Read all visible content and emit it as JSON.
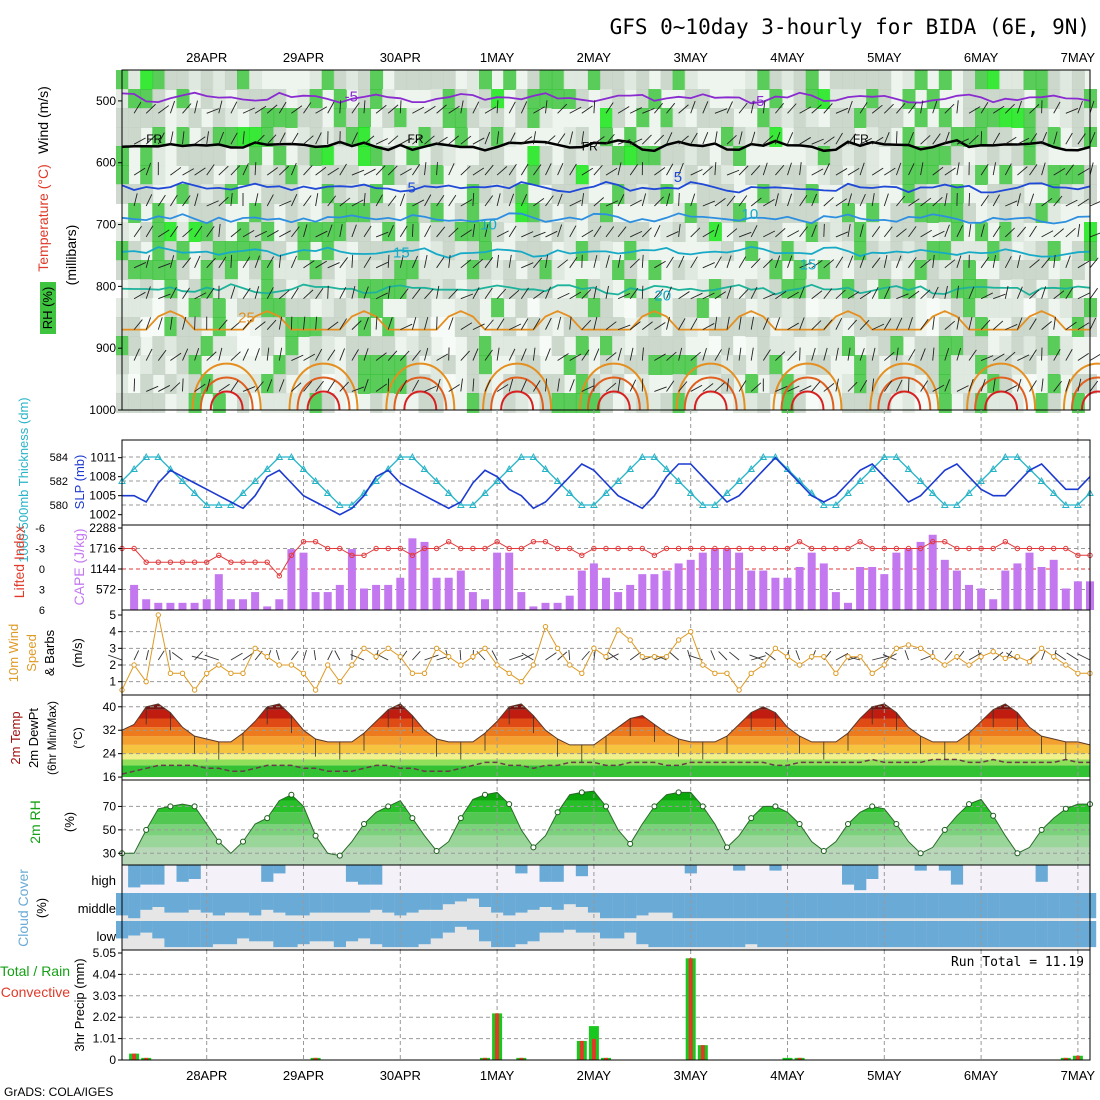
{
  "title": "GFS 0~10day 3-hourly for BIDA (6E, 9N)",
  "credit": "GrADS: COLA/IGES",
  "dates": [
    "28APR",
    "29APR",
    "30APR",
    "1MAY",
    "2MAY",
    "3MAY",
    "4MAY",
    "5MAY",
    "6MAY",
    "7MAY"
  ],
  "colors": {
    "rh_green": "#3fc43f",
    "rh_bright": "#17e617",
    "rh_gray": "#c7d2c7",
    "temp_blue": "#1f49d6",
    "temp_cyan": "#16aac6",
    "temp_orange": "#e48f20",
    "cape_purple": "#c478f0",
    "li_red": "#e2383a",
    "slp_blue": "#1c3ad0",
    "thick_cyan": "#28b4c8",
    "wind_orange": "#de9a24",
    "cloud_blue": "#6aaad6",
    "precip_green": "#19c81e",
    "precip_red": "#e03a28"
  },
  "panels": {
    "upper": {
      "ylabel": "(millibars)",
      "legend_wind": "Wind (m/s)",
      "legend_temp": "Temperature (°C)",
      "legend_rh": "RH (%)",
      "yticks": [
        "500",
        "600",
        "700",
        "800",
        "900",
        "1000"
      ],
      "contour_labels": [
        {
          "text": "-5",
          "mb": 493,
          "day": 2.3
        },
        {
          "text": "-5",
          "mb": 500,
          "day": 6.5
        },
        {
          "text": "FR",
          "mb": 560,
          "day": 0.25
        },
        {
          "text": "FR",
          "mb": 560,
          "day": 2.95
        },
        {
          "text": "FR",
          "mb": 572,
          "day": 4.75
        },
        {
          "text": "FR",
          "mb": 560,
          "day": 7.55
        },
        {
          "text": "5",
          "mb": 640,
          "day": 2.95
        },
        {
          "text": "5",
          "mb": 623,
          "day": 5.7
        },
        {
          "text": "10",
          "mb": 700,
          "day": 3.7
        },
        {
          "text": "10",
          "mb": 683,
          "day": 6.4
        },
        {
          "text": "15",
          "mb": 745,
          "day": 2.8
        },
        {
          "text": "15",
          "mb": 765,
          "day": 7.0
        },
        {
          "text": "20",
          "mb": 815,
          "day": 5.5
        },
        {
          "text": "25",
          "mb": 850,
          "day": 1.2
        }
      ]
    },
    "slp": {
      "ylabel_left": "1000-500mb Thickness (dm)",
      "ylabel_right": "SLP (mb)",
      "left_ticks": [
        "584",
        "582",
        "580"
      ],
      "right_ticks": [
        "1011",
        "1008",
        "1005",
        "1002"
      ]
    },
    "cape": {
      "ylabel_left": "Lifted Index",
      "ylabel_right": "CAPE (J/kg)",
      "li_ticks": [
        "-6",
        "-3",
        "0",
        "3",
        "6"
      ],
      "cape_ticks": [
        "2288",
        "1716",
        "1144",
        "572"
      ]
    },
    "wind": {
      "ylabel": "10m Wind Speed & Barbs (m/s)",
      "ylabel_a": "10m Wind",
      "ylabel_b": "Speed",
      "ylabel_c": "& Barbs",
      "ylabel_d": "(m/s)",
      "yticks": [
        "5",
        "4",
        "3",
        "2",
        "1"
      ]
    },
    "temp": {
      "ylabel_a": "2m Temp",
      "ylabel_b": "2m DewPt",
      "ylabel_c": "(6hr Min/Max)",
      "ylabel_d": "(°C)",
      "yticks": [
        "40",
        "32",
        "24",
        "16"
      ]
    },
    "rh": {
      "ylabel_a": "2m RH",
      "ylabel_b": "(%)",
      "yticks": [
        "70",
        "50",
        "30"
      ]
    },
    "cloud": {
      "ylabel_a": "Cloud Cover",
      "ylabel_b": "(%)",
      "levels": [
        "high",
        "middle",
        "low"
      ]
    },
    "precip": {
      "ylabel_a": "Total / Rain",
      "ylabel_b": "Convective",
      "ylabel_c": "3hr Precip (mm)",
      "yticks": [
        "5.05",
        "4.04",
        "3.03",
        "2.02",
        "1.01",
        "0"
      ],
      "run_total": "Run Total = 11.19"
    }
  },
  "chart_data": {
    "type": "line",
    "title": "GFS 0~10day 3-hourly for BIDA (6E, 9N)",
    "time_axis": {
      "start": "27APR 09Z",
      "step_hours": 3,
      "steps": 81,
      "tick_labels": [
        "28APR",
        "29APR",
        "30APR",
        "1MAY",
        "2MAY",
        "3MAY",
        "4MAY",
        "5MAY",
        "6MAY",
        "7MAY"
      ]
    },
    "upper_air": {
      "ylim_mb": [
        450,
        1000
      ],
      "temperature_contours": {
        "-5": 495,
        "FR": 572,
        "5": 640,
        "10": 690,
        "15": 745,
        "20": 805,
        "25": 870
      }
    },
    "thickness_dm": [
      582,
      583,
      584,
      584,
      583,
      582,
      581,
      580,
      580,
      580,
      581,
      582,
      583,
      584,
      584,
      583,
      582,
      581,
      580,
      580,
      581,
      582,
      583,
      584,
      584,
      583,
      582,
      581,
      580,
      580,
      581,
      582,
      583,
      584,
      584,
      583,
      582,
      581,
      580,
      580,
      581,
      582,
      583,
      584,
      584,
      583,
      582,
      581,
      580,
      580,
      581,
      582,
      583,
      584,
      584,
      583,
      582,
      581,
      580,
      580,
      581,
      582,
      583,
      584,
      584,
      583,
      582,
      581,
      580,
      580,
      581,
      582,
      583,
      584,
      584,
      583,
      582,
      581,
      580,
      580,
      581
    ],
    "slp_mb": [
      1005,
      1005,
      1004,
      1007,
      1009,
      1008,
      1007,
      1006,
      1005,
      1004,
      1003,
      1005,
      1008,
      1009,
      1007,
      1005,
      1004,
      1003,
      1002,
      1003,
      1005,
      1008,
      1009,
      1007,
      1006,
      1005,
      1004,
      1003,
      1004,
      1007,
      1009,
      1008,
      1006,
      1005,
      1003,
      1004,
      1006,
      1008,
      1010,
      1009,
      1007,
      1005,
      1004,
      1003,
      1005,
      1008,
      1010,
      1010,
      1008,
      1006,
      1004,
      1005,
      1007,
      1009,
      1011,
      1009,
      1007,
      1005,
      1004,
      1005,
      1007,
      1009,
      1010,
      1008,
      1006,
      1004,
      1005,
      1007,
      1009,
      1010,
      1008,
      1006,
      1005,
      1005,
      1007,
      1009,
      1010,
      1008,
      1006,
      1006,
      1008
    ],
    "lifted_index": [
      -3,
      -3,
      -1,
      -1,
      -1,
      -1,
      -1,
      -1,
      -2,
      -1,
      -1,
      -1,
      -1,
      1,
      -2,
      -4,
      -4,
      -3,
      -3,
      -2,
      -2,
      -3,
      -3,
      -3,
      -2,
      -3,
      -3,
      -4,
      -3,
      -3,
      -3,
      -4,
      -3,
      -3,
      -4,
      -4,
      -3,
      -3,
      -2,
      -3,
      -3,
      -3,
      -3,
      -3,
      -2,
      -3,
      -3,
      -3,
      -3,
      -3,
      -3,
      -3,
      -3,
      -3,
      -3,
      -3,
      -4,
      -3,
      -3,
      -3,
      -3,
      -4,
      -3,
      -3,
      -3,
      -3,
      -3,
      -4,
      -4,
      -3,
      -3,
      -3,
      -3,
      -4,
      -3,
      -3,
      -3,
      -3,
      -3,
      -2,
      -2
    ],
    "cape_jkg": [
      900,
      700,
      300,
      200,
      200,
      200,
      200,
      300,
      1000,
      300,
      300,
      500,
      100,
      300,
      1700,
      1600,
      500,
      500,
      700,
      1700,
      600,
      700,
      700,
      900,
      2000,
      1900,
      900,
      900,
      1100,
      500,
      300,
      1600,
      1600,
      500,
      100,
      200,
      200,
      400,
      1100,
      1300,
      900,
      500,
      700,
      1000,
      1000,
      1100,
      1300,
      1400,
      1600,
      1700,
      1700,
      1600,
      1100,
      1100,
      900,
      900,
      1200,
      1600,
      1300,
      500,
      200,
      1200,
      1200,
      1000,
      1600,
      1700,
      1900,
      2100,
      1400,
      1100,
      700,
      600,
      300,
      1100,
      1300,
      1600,
      1200,
      1400,
      600,
      800,
      800
    ],
    "wind_speed_ms": [
      0.5,
      2,
      1,
      5,
      1.5,
      1.5,
      0.5,
      1.5,
      2,
      1.5,
      1.5,
      3,
      2.5,
      2,
      2,
      1.5,
      0.5,
      2,
      1,
      2,
      3,
      2.5,
      3,
      2.5,
      1.5,
      1.5,
      3,
      2.5,
      2,
      2.5,
      3,
      2,
      1.5,
      1,
      2,
      4.3,
      3,
      2,
      1.5,
      3,
      2.5,
      4.1,
      3.5,
      2.5,
      2.5,
      2.5,
      3.5,
      4,
      2,
      1.5,
      1.5,
      0.5,
      1.5,
      2,
      3,
      2.5,
      2,
      2.5,
      2.5,
      1.5,
      2.5,
      2.5,
      1.5,
      2,
      3,
      3.2,
      3,
      2.5,
      2,
      2.5,
      2,
      2.5,
      2.8,
      2.4,
      2.5,
      2.2,
      3,
      2.5,
      2,
      1.5,
      1.5
    ],
    "temp_2m_c": [
      32,
      34,
      40,
      41,
      38,
      33,
      30,
      29,
      28,
      28,
      31,
      35,
      40,
      41,
      37,
      32,
      29,
      28,
      28,
      28,
      31,
      35,
      39,
      41,
      37,
      32,
      29,
      28,
      28,
      28,
      31,
      35,
      40,
      41,
      37,
      32,
      29,
      27,
      27,
      27,
      30,
      33,
      36,
      37,
      34,
      31,
      29,
      28,
      28,
      28,
      30,
      34,
      38,
      40,
      38,
      33,
      30,
      28,
      28,
      28,
      31,
      36,
      40,
      41,
      38,
      33,
      30,
      28,
      28,
      28,
      31,
      35,
      39,
      41,
      38,
      33,
      30,
      29,
      28,
      28,
      27
    ],
    "dewpoint_2m_c": [
      17,
      18,
      19,
      20,
      20,
      20,
      20,
      19,
      19,
      18,
      18,
      19,
      20,
      20,
      20,
      19,
      19,
      18,
      18,
      18,
      19,
      20,
      20,
      19,
      19,
      18,
      18,
      18,
      19,
      20,
      21,
      21,
      20,
      20,
      19,
      20,
      20,
      21,
      21,
      21,
      20,
      20,
      21,
      21,
      21,
      20,
      20,
      21,
      21,
      21,
      21,
      21,
      21,
      21,
      20,
      20,
      21,
      21,
      21,
      21,
      21,
      21,
      22,
      21,
      21,
      21,
      21,
      22,
      22,
      22,
      21,
      21,
      22,
      21,
      21,
      21,
      21,
      21,
      22,
      21,
      21
    ],
    "rh_2m_pct": [
      30,
      30,
      50,
      68,
      70,
      72,
      70,
      55,
      40,
      30,
      40,
      55,
      60,
      75,
      80,
      70,
      45,
      30,
      28,
      40,
      55,
      65,
      70,
      75,
      60,
      45,
      32,
      40,
      60,
      76,
      80,
      82,
      72,
      50,
      35,
      45,
      65,
      80,
      82,
      83,
      70,
      50,
      38,
      55,
      70,
      80,
      82,
      82,
      70,
      55,
      35,
      45,
      60,
      70,
      70,
      65,
      55,
      40,
      32,
      40,
      55,
      65,
      70,
      68,
      55,
      40,
      30,
      35,
      50,
      62,
      72,
      76,
      62,
      45,
      30,
      35,
      50,
      60,
      68,
      72,
      72
    ],
    "cloud_cover": {
      "levels": [
        "high",
        "middle",
        "low"
      ],
      "high_pct": [
        0,
        80,
        70,
        70,
        0,
        60,
        50,
        0,
        0,
        0,
        0,
        0,
        60,
        30,
        0,
        0,
        0,
        0,
        0,
        60,
        70,
        70,
        0,
        0,
        0,
        0,
        0,
        0,
        0,
        0,
        0,
        0,
        0,
        30,
        0,
        60,
        60,
        0,
        40,
        0,
        0,
        0,
        0,
        0,
        0,
        0,
        0,
        30,
        0,
        0,
        0,
        20,
        0,
        0,
        20,
        0,
        0,
        0,
        0,
        0,
        70,
        90,
        50,
        0,
        0,
        0,
        20,
        0,
        20,
        70,
        0,
        0,
        0,
        0,
        0,
        0,
        60,
        0,
        0,
        0,
        0
      ],
      "middle_pct": [
        80,
        90,
        60,
        50,
        70,
        70,
        60,
        70,
        80,
        70,
        70,
        80,
        60,
        70,
        80,
        80,
        70,
        70,
        70,
        70,
        70,
        60,
        70,
        80,
        70,
        60,
        60,
        40,
        30,
        20,
        50,
        70,
        80,
        70,
        60,
        50,
        60,
        40,
        50,
        70,
        90,
        90,
        90,
        80,
        70,
        70,
        90,
        90,
        90,
        90,
        90,
        90,
        90,
        90,
        90,
        90,
        90,
        90,
        90,
        90,
        90,
        90,
        90,
        90,
        90,
        90,
        90,
        90,
        90,
        90,
        90,
        90,
        90,
        90,
        90,
        90,
        90,
        90,
        90,
        90,
        90
      ],
      "low_pct": [
        60,
        50,
        40,
        60,
        90,
        90,
        90,
        90,
        80,
        80,
        60,
        70,
        70,
        90,
        90,
        80,
        70,
        70,
        90,
        70,
        60,
        80,
        90,
        90,
        90,
        80,
        60,
        40,
        20,
        30,
        70,
        90,
        90,
        80,
        70,
        40,
        40,
        30,
        40,
        40,
        60,
        60,
        40,
        80,
        90,
        90,
        90,
        90,
        90,
        90,
        90,
        90,
        80,
        90,
        90,
        90,
        90,
        90,
        90,
        90,
        90,
        90,
        90,
        90,
        90,
        90,
        90,
        90,
        90,
        90,
        90,
        90,
        90,
        90,
        90,
        90,
        90,
        90,
        90,
        90,
        90
      ]
    },
    "precip_3hr_mm": {
      "total": [
        0,
        0.3,
        0.1,
        0,
        0,
        0,
        0,
        0,
        0,
        0,
        0,
        0,
        0,
        0,
        0,
        0,
        0.1,
        0,
        0,
        0,
        0,
        0,
        0,
        0,
        0,
        0,
        0,
        0,
        0,
        0,
        0.1,
        2.2,
        0,
        0.1,
        0,
        0,
        0,
        0,
        0.9,
        1.6,
        0.1,
        0,
        0,
        0,
        0,
        0,
        0,
        4.8,
        0.7,
        0,
        0,
        0,
        0,
        0,
        0,
        0.1,
        0.1,
        0,
        0,
        0,
        0,
        0,
        0,
        0,
        0,
        0,
        0,
        0,
        0,
        0,
        0,
        0,
        0,
        0,
        0,
        0,
        0,
        0,
        0.1,
        0.2,
        0
      ],
      "convective": [
        0,
        0.3,
        0.1,
        0,
        0,
        0,
        0,
        0,
        0,
        0,
        0,
        0,
        0,
        0,
        0,
        0,
        0.1,
        0,
        0,
        0,
        0,
        0,
        0,
        0,
        0,
        0,
        0,
        0,
        0,
        0,
        0.1,
        2.2,
        0,
        0.1,
        0,
        0,
        0,
        0,
        0.9,
        1.0,
        0.1,
        0,
        0,
        0,
        0,
        0,
        0,
        4.8,
        0.7,
        0,
        0,
        0,
        0,
        0,
        0,
        0,
        0.1,
        0,
        0,
        0,
        0,
        0,
        0,
        0,
        0,
        0,
        0,
        0,
        0,
        0,
        0,
        0,
        0,
        0,
        0,
        0,
        0,
        0,
        0.1,
        0.2,
        0
      ],
      "run_total": 11.19
    }
  }
}
